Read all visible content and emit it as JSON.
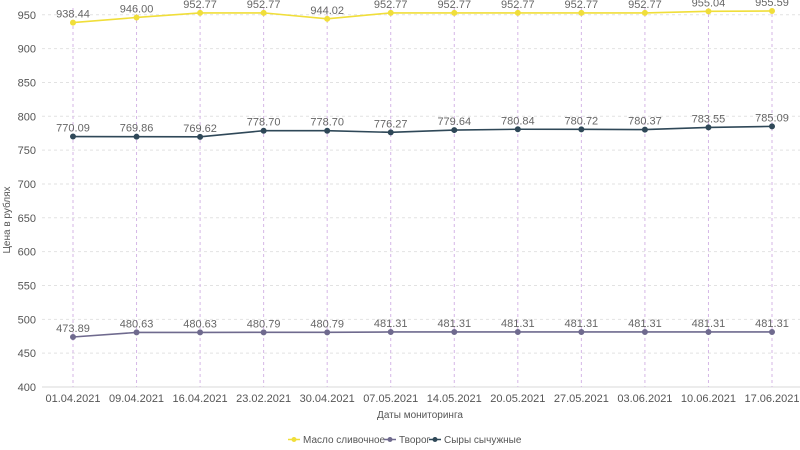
{
  "chart_data": {
    "type": "line",
    "title": "",
    "xlabel": "Даты мониторинга",
    "ylabel": "Цена в рублях",
    "ylim": [
      400,
      960
    ],
    "yticks": [
      400,
      450,
      500,
      550,
      600,
      650,
      700,
      750,
      800,
      850,
      900,
      950
    ],
    "grid": true,
    "legend_position": "bottom-center",
    "categories": [
      "01.04.2021",
      "09.04.2021",
      "16.04.2021",
      "23.02.2021",
      "30.04.2021",
      "07.05.2021",
      "14.05.2021",
      "20.05.2021",
      "27.05.2021",
      "03.06.2021",
      "10.06.2021",
      "17.06.2021"
    ],
    "series": [
      {
        "name": "Масло сливочное",
        "color": "#f0de3a",
        "values": [
          938.44,
          946.0,
          952.77,
          952.77,
          944.02,
          952.77,
          952.77,
          952.77,
          952.77,
          952.77,
          955.04,
          955.59
        ],
        "labels": [
          "938.44",
          "946.00",
          "952.77",
          "952.77",
          "944.02",
          "952.77",
          "952.77",
          "952.77",
          "952.77",
          "952.77",
          "955.04",
          "955.59"
        ]
      },
      {
        "name": "Творог",
        "color": "#6f6a8e",
        "values": [
          473.89,
          480.63,
          480.63,
          480.79,
          480.79,
          481.31,
          481.31,
          481.31,
          481.31,
          481.31,
          481.31,
          481.31
        ],
        "labels": [
          "473.89",
          "480.63",
          "480.63",
          "480.79",
          "480.79",
          "481.31",
          "481.31",
          "481.31",
          "481.31",
          "481.31",
          "481.31",
          "481.31"
        ]
      },
      {
        "name": "Сыры сычужные",
        "color": "#2f4858",
        "values": [
          770.09,
          769.86,
          769.62,
          778.7,
          778.7,
          776.27,
          779.64,
          780.84,
          780.72,
          780.37,
          783.55,
          785.09
        ],
        "labels": [
          "770.09",
          "769.86",
          "769.62",
          "778.70",
          "778.70",
          "776.27",
          "779.64",
          "780.84",
          "780.72",
          "780.37",
          "783.55",
          "785.09"
        ]
      }
    ]
  }
}
